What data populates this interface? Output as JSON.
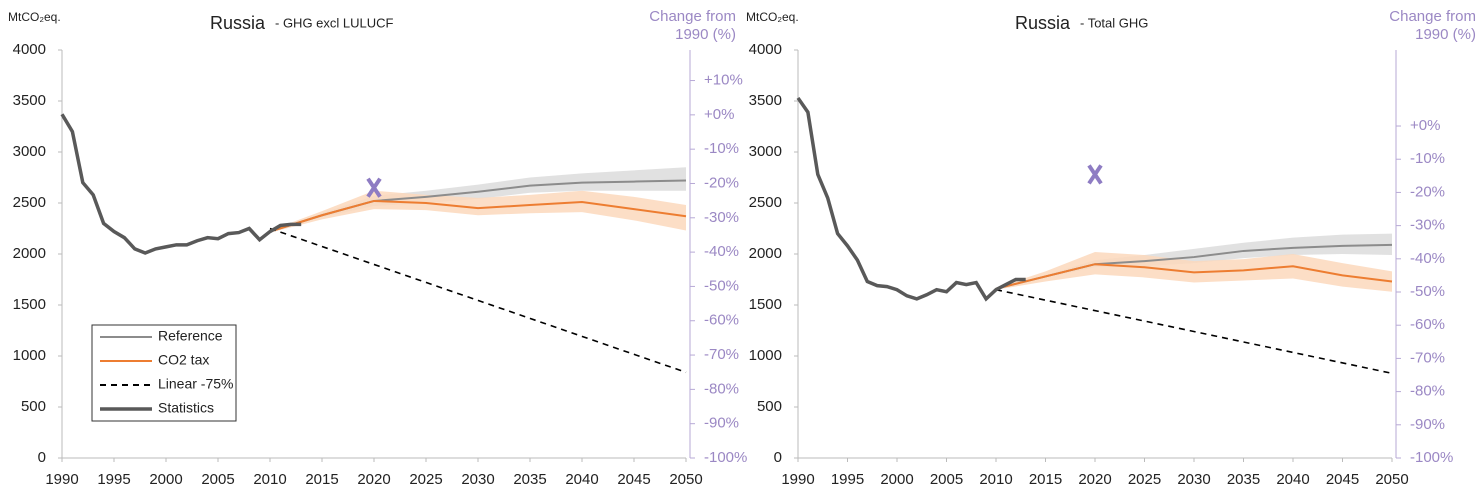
{
  "chart_data": [
    {
      "type": "line",
      "title": "Russia",
      "subtitle": "- GHG excl LULUCF",
      "ylabel": "MtCO₂eq.",
      "y2label": [
        "Change from",
        "1990 (%)"
      ],
      "xlim": [
        1990,
        2050
      ],
      "xticks": [
        1990,
        1995,
        2000,
        2005,
        2010,
        2015,
        2020,
        2025,
        2030,
        2035,
        2040,
        2045,
        2050
      ],
      "ylim": [
        0,
        4000
      ],
      "yticks": [
        0,
        500,
        1000,
        1500,
        2000,
        2500,
        3000,
        3500,
        4000
      ],
      "y2lim": [
        -100,
        18.9
      ],
      "y2ticks": [
        {
          "value": -100,
          "label": "-100%"
        },
        {
          "value": -90,
          "label": "-90%"
        },
        {
          "value": -80,
          "label": "-80%"
        },
        {
          "value": -70,
          "label": "-70%"
        },
        {
          "value": -60,
          "label": "-60%"
        },
        {
          "value": -50,
          "label": "-50%"
        },
        {
          "value": -40,
          "label": "-40%"
        },
        {
          "value": -30,
          "label": "-30%"
        },
        {
          "value": -20,
          "label": "-20%"
        },
        {
          "value": -10,
          "label": "-10%"
        },
        {
          "value": 0,
          "label": "+0%"
        },
        {
          "value": 10,
          "label": "+10%"
        }
      ],
      "legend": "lower left",
      "marker": {
        "x": 2020,
        "y": 2650,
        "color": "#8e7cc3"
      },
      "series": [
        {
          "name": "Reference",
          "color": "#8c8c8c",
          "band_color": "#dcdcdc",
          "x": [
            2010,
            2015,
            2020,
            2025,
            2030,
            2035,
            2040,
            2045,
            2050
          ],
          "values": [
            2220,
            2380,
            2520,
            2560,
            2610,
            2670,
            2700,
            2710,
            2720
          ],
          "band_low": [
            2220,
            2360,
            2470,
            2500,
            2540,
            2600,
            2620,
            2620,
            2620
          ],
          "band_high": [
            2220,
            2400,
            2570,
            2620,
            2680,
            2750,
            2790,
            2820,
            2850
          ]
        },
        {
          "name": "CO2 tax",
          "color": "#ed7d31",
          "band_color": "#fbd8bc",
          "x": [
            2010,
            2015,
            2020,
            2025,
            2030,
            2035,
            2040,
            2045,
            2050
          ],
          "values": [
            2220,
            2380,
            2520,
            2500,
            2450,
            2480,
            2510,
            2440,
            2370
          ],
          "band_low": [
            2210,
            2340,
            2440,
            2430,
            2380,
            2400,
            2410,
            2330,
            2230
          ],
          "band_high": [
            2230,
            2420,
            2620,
            2580,
            2550,
            2580,
            2620,
            2560,
            2480
          ]
        },
        {
          "name": "Linear -75%",
          "color": "#000000",
          "dash": true,
          "x": [
            2010,
            2050
          ],
          "values": [
            2250,
            840
          ]
        },
        {
          "name": "Statistics",
          "color": "#595959",
          "thick": true,
          "x": [
            1990,
            1991,
            1992,
            1993,
            1994,
            1995,
            1996,
            1997,
            1998,
            1999,
            2000,
            2001,
            2002,
            2003,
            2004,
            2005,
            2006,
            2007,
            2008,
            2009,
            2010,
            2011,
            2012,
            2013
          ],
          "values": [
            3370,
            3200,
            2700,
            2580,
            2300,
            2220,
            2160,
            2050,
            2010,
            2050,
            2070,
            2090,
            2090,
            2130,
            2160,
            2150,
            2200,
            2210,
            2250,
            2140,
            2220,
            2280,
            2290,
            2290
          ]
        }
      ]
    },
    {
      "type": "line",
      "title": "Russia",
      "subtitle": "- Total GHG",
      "ylabel": "MtCO₂eq.",
      "y2label": [
        "Change from",
        "1990 (%)"
      ],
      "xlim": [
        1990,
        2050
      ],
      "xticks": [
        1990,
        1995,
        2000,
        2005,
        2010,
        2015,
        2020,
        2025,
        2030,
        2035,
        2040,
        2045,
        2050
      ],
      "ylim": [
        0,
        4000
      ],
      "yticks": [
        0,
        500,
        1000,
        1500,
        2000,
        2500,
        3000,
        3500,
        4000
      ],
      "y2lim": [
        -100,
        22.9
      ],
      "y2ticks": [
        {
          "value": -100,
          "label": "-100%"
        },
        {
          "value": -90,
          "label": "-90%"
        },
        {
          "value": -80,
          "label": "-80%"
        },
        {
          "value": -70,
          "label": "-70%"
        },
        {
          "value": -60,
          "label": "-60%"
        },
        {
          "value": -50,
          "label": "-50%"
        },
        {
          "value": -40,
          "label": "-40%"
        },
        {
          "value": -30,
          "label": "-30%"
        },
        {
          "value": -20,
          "label": "-20%"
        },
        {
          "value": -10,
          "label": "-10%"
        },
        {
          "value": 0,
          "label": "+0%"
        }
      ],
      "marker": {
        "x": 2020,
        "y": 2780,
        "color": "#8e7cc3"
      },
      "series": [
        {
          "name": "Reference",
          "color": "#8c8c8c",
          "band_color": "#dcdcdc",
          "x": [
            2010,
            2015,
            2020,
            2025,
            2030,
            2035,
            2040,
            2045,
            2050
          ],
          "values": [
            1660,
            1780,
            1900,
            1930,
            1970,
            2030,
            2060,
            2080,
            2090
          ],
          "band_low": [
            1660,
            1770,
            1870,
            1880,
            1910,
            1960,
            1990,
            2000,
            1990
          ],
          "band_high": [
            1660,
            1790,
            1940,
            1990,
            2050,
            2110,
            2160,
            2190,
            2200
          ]
        },
        {
          "name": "CO2 tax",
          "color": "#ed7d31",
          "band_color": "#fbd8bc",
          "x": [
            2010,
            2015,
            2020,
            2025,
            2030,
            2035,
            2040,
            2045,
            2050
          ],
          "values": [
            1660,
            1780,
            1900,
            1870,
            1820,
            1840,
            1880,
            1790,
            1730
          ],
          "band_low": [
            1650,
            1730,
            1800,
            1770,
            1720,
            1740,
            1760,
            1680,
            1630
          ],
          "band_high": [
            1670,
            1830,
            2020,
            1990,
            1930,
            1950,
            2000,
            1910,
            1830
          ]
        },
        {
          "name": "Linear -75%",
          "color": "#000000",
          "dash": true,
          "x": [
            2010,
            2050
          ],
          "values": [
            1650,
            830
          ]
        },
        {
          "name": "Statistics",
          "color": "#595959",
          "thick": true,
          "x": [
            1990,
            1991,
            1992,
            1993,
            1994,
            1995,
            1996,
            1997,
            1998,
            1999,
            2000,
            2001,
            2002,
            2003,
            2004,
            2005,
            2006,
            2007,
            2008,
            2009,
            2010,
            2011,
            2012,
            2013
          ],
          "values": [
            3530,
            3390,
            2780,
            2550,
            2200,
            2080,
            1940,
            1730,
            1690,
            1680,
            1650,
            1590,
            1560,
            1600,
            1650,
            1630,
            1720,
            1700,
            1720,
            1560,
            1650,
            1700,
            1750,
            1750
          ]
        }
      ]
    }
  ]
}
